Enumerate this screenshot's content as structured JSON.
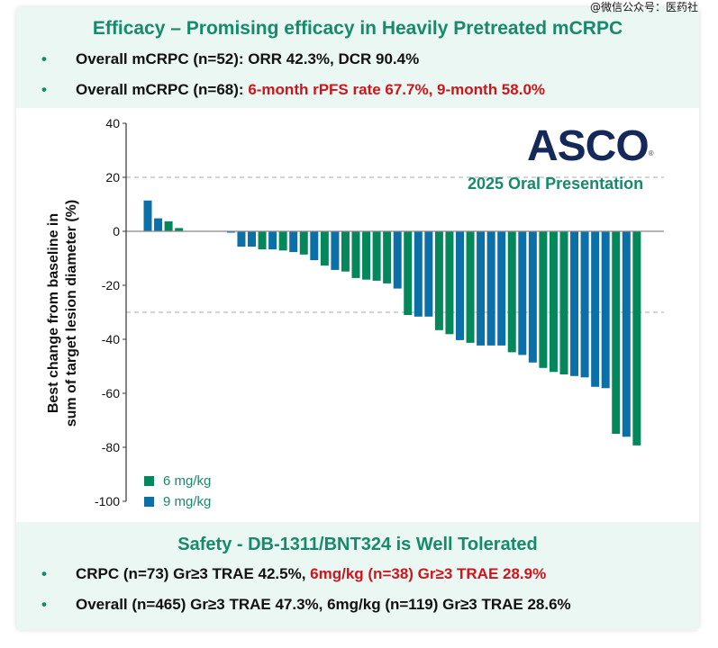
{
  "header": {
    "title": "Efficacy – Promising efficacy in Heavily Pretreated mCRPC",
    "bullets": [
      {
        "text": "Overall mCRPC (n=52): ORR 42.3%, DCR 90.4%",
        "red": ""
      },
      {
        "text": "Overall mCRPC (n=68): ",
        "red": "6-month rPFS rate 67.7%, 9-month 58.0%"
      }
    ]
  },
  "watermark": "@微信公众号：医药社",
  "logo": {
    "text": "ASCO",
    "mark": "®",
    "subtitle": "2025 Oral Presentation"
  },
  "footer": {
    "title": "Safety - DB-1311/BNT324 is Well Tolerated",
    "bullets": [
      {
        "text": "CRPC (n=73) Gr≥3 TRAE 42.5%, ",
        "red": "6mg/kg (n=38) Gr≥3 TRAE 28.9%"
      },
      {
        "text": "Overall (n=465) Gr≥3 TRAE 47.3%, 6mg/kg (n=119) Gr≥3 TRAE 28.6%",
        "red": ""
      }
    ],
    "bullet_symbol": "•"
  },
  "colors": {
    "6mg": "#05875c",
    "9mg": "#0b70a8",
    "accent": "#168a6a",
    "red": "#d0141b"
  },
  "chart_data": {
    "type": "bar",
    "title": "",
    "xlabel": "",
    "ylabel": "Best change from baseline in sum of target lesion diameter (%)",
    "ylabel_lines": [
      "Best change from baseline in",
      "sum of target lesion diameter (%)"
    ],
    "ylim": [
      -100,
      40
    ],
    "yticks": [
      "40",
      "20",
      "0",
      "-20",
      "-40",
      "-60",
      "-80",
      "-100"
    ],
    "ytick_values": [
      40,
      20,
      0,
      -20,
      -40,
      -60,
      -80,
      -100
    ],
    "reference_lines": [
      20,
      -30
    ],
    "legend": [
      {
        "label": "6 mg/kg",
        "key": "6mg"
      },
      {
        "label": "9 mg/kg",
        "key": "9mg"
      }
    ],
    "legend_position": "bottom-left",
    "series_by_bar": [
      "9mg",
      "9mg",
      "6mg",
      "6mg",
      "6mg",
      "9mg",
      "6mg",
      "9mg",
      "9mg",
      "9mg",
      "9mg",
      "6mg",
      "9mg",
      "6mg",
      "9mg",
      "6mg",
      "9mg",
      "6mg",
      "9mg",
      "6mg",
      "6mg",
      "6mg",
      "6mg",
      "6mg",
      "9mg",
      "6mg",
      "9mg",
      "9mg",
      "6mg",
      "6mg",
      "9mg",
      "6mg",
      "9mg",
      "9mg",
      "9mg",
      "6mg",
      "9mg",
      "9mg",
      "6mg",
      "6mg",
      "6mg",
      "9mg",
      "9mg",
      "9mg",
      "9mg",
      "6mg",
      "9mg",
      "6mg"
    ],
    "values": [
      11.4,
      4.8,
      3.7,
      1.2,
      0,
      0,
      0,
      0,
      -0.5,
      -5.7,
      -5.7,
      -6.7,
      -6.7,
      -7.1,
      -7.7,
      -8.6,
      -10.7,
      -12.7,
      -14.3,
      -14.9,
      -17.3,
      -17.9,
      -18.3,
      -19.3,
      -21.2,
      -31.0,
      -31.6,
      -31.6,
      -36.6,
      -38.1,
      -40.3,
      -41.3,
      -42.3,
      -42.3,
      -42.3,
      -44.8,
      -45.8,
      -48.6,
      -50.6,
      -52.1,
      -53.0,
      -53.6,
      -54.1,
      -57.6,
      -58.1,
      -75.0,
      -76.1,
      -79.3
    ]
  }
}
